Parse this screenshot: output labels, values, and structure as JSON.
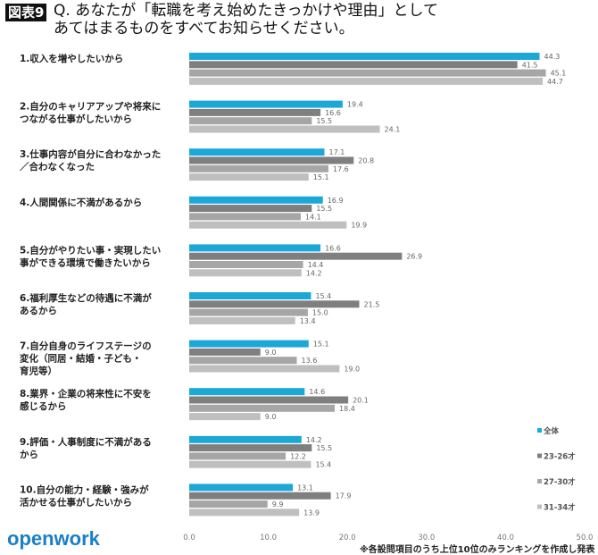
{
  "header": {
    "badge": "図表9",
    "title": "Q. あなたが「転職を考え始めたきっかけや理由」として",
    "title2": "あてはまるものをすべてお知らせください。"
  },
  "footer": {
    "logo": "openwork",
    "note": "※各設問項目のうち上位10位のみランキングを作成し発表"
  },
  "chart_data": {
    "type": "bar",
    "orientation": "horizontal",
    "categories": [
      [
        "1.収入を増やしたいから"
      ],
      [
        "2.自分のキャリアアップや将来に",
        "つながる仕事がしたいから"
      ],
      [
        "3.仕事内容が自分に合わなかった",
        "／合わなくなった"
      ],
      [
        "4.人間関係に不満があるから"
      ],
      [
        "5.自分がやりたい事・実現したい",
        "事ができる環境で働きたいから"
      ],
      [
        "6.福利厚生などの待遇に不満が",
        "あるから"
      ],
      [
        "7.自分自身のライフステージの",
        "変化（同居・結婚・子ども・",
        "育児等）"
      ],
      [
        "8.業界・企業の将来性に不安を",
        "感じるから"
      ],
      [
        "9.評価・人事制度に不満がある",
        "から"
      ],
      [
        "10.自分の能力・経験・強みが",
        "活かせる仕事がしたいから"
      ]
    ],
    "series": [
      {
        "name": "全体",
        "color": "#1ba8d8",
        "values": [
          44.3,
          19.4,
          17.1,
          16.9,
          16.6,
          15.4,
          15.1,
          14.6,
          14.2,
          13.1
        ]
      },
      {
        "name": "23-26才",
        "color": "#7f7f7f",
        "values": [
          41.5,
          16.6,
          20.8,
          15.5,
          26.9,
          21.5,
          9.0,
          20.1,
          15.5,
          17.9
        ]
      },
      {
        "name": "27-30才",
        "color": "#a6a6a6",
        "values": [
          45.1,
          15.5,
          17.6,
          14.1,
          14.4,
          15.0,
          13.6,
          18.4,
          12.2,
          9.9
        ]
      },
      {
        "name": "31-34才",
        "color": "#bfbfbf",
        "values": [
          44.7,
          24.1,
          15.1,
          19.9,
          14.2,
          13.4,
          19.0,
          9.0,
          15.4,
          13.9
        ]
      }
    ],
    "xlim": [
      0,
      50
    ],
    "xticks": [
      "0.0",
      "10.0",
      "20.0",
      "30.0",
      "40.0",
      "50.0"
    ],
    "grid": false,
    "legend": "right"
  }
}
